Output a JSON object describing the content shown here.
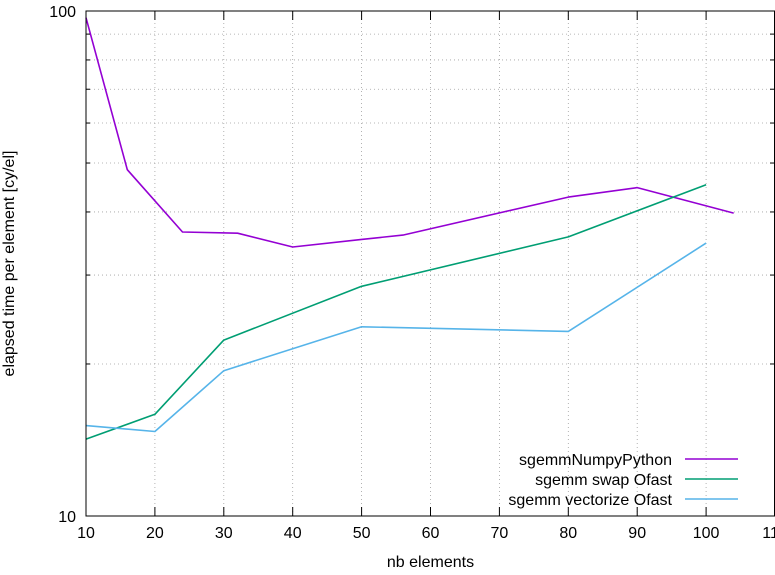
{
  "chart_data": {
    "type": "line",
    "title": "",
    "xlabel": "nb elements",
    "ylabel": "elapsed time per element [cy/el]",
    "xlim": [
      10,
      110
    ],
    "ylim": [
      10,
      100
    ],
    "yscale": "log",
    "x_ticks": [
      10,
      20,
      30,
      40,
      50,
      60,
      70,
      80,
      90,
      100,
      110
    ],
    "y_ticks": [
      10,
      100
    ],
    "grid": true,
    "grid_style": "dotted",
    "legend_position": "bottom-right",
    "series": [
      {
        "name": "sgemmNumpyPython",
        "color": "#9400d3",
        "points": [
          [
            10,
            97
          ],
          [
            16,
            48.5
          ],
          [
            24,
            36.5
          ],
          [
            32,
            36.3
          ],
          [
            40,
            34.1
          ],
          [
            50,
            35.3
          ],
          [
            56,
            36
          ],
          [
            80,
            42.8
          ],
          [
            90,
            44.7
          ],
          [
            104,
            39.8
          ]
        ]
      },
      {
        "name": "sgemm swap Ofast",
        "color": "#009e73",
        "points": [
          [
            10,
            14.2
          ],
          [
            20,
            15.9
          ],
          [
            30,
            22.3
          ],
          [
            50,
            28.5
          ],
          [
            80,
            35.7
          ],
          [
            100,
            45.3
          ]
        ]
      },
      {
        "name": "sgemm vectorize Ofast",
        "color": "#56b4e9",
        "points": [
          [
            10,
            15.1
          ],
          [
            20,
            14.7
          ],
          [
            30,
            19.4
          ],
          [
            50,
            23.7
          ],
          [
            80,
            23.2
          ],
          [
            100,
            34.7
          ]
        ]
      }
    ]
  }
}
